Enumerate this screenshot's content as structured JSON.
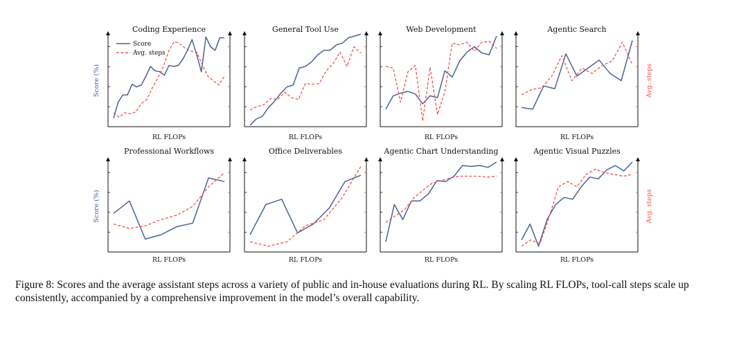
{
  "colors": {
    "score": "#4a6294",
    "steps": "#ef5350",
    "axis": "#111111",
    "tick": "#d44a4a"
  },
  "legend": {
    "score_label": "Score",
    "steps_label": "Avg. steps"
  },
  "axes": {
    "left_label": "Score (%)",
    "right_label": "Avg. steps",
    "x_label": "RL FLOPs"
  },
  "chart_data": [
    {
      "type": "line",
      "title": "Coding Experience",
      "xlabel": "RL FLOPs",
      "ylabel": "Score (%)",
      "legend": "top-left",
      "series": [
        {
          "name": "Score",
          "values": [
            0.08,
            0.26,
            0.34,
            0.34,
            0.46,
            0.43,
            0.45,
            0.55,
            0.66,
            0.61,
            0.6,
            0.56,
            0.67,
            0.66,
            0.67,
            0.74,
            0.84,
            0.96,
            0.79,
            0.6,
            0.99,
            0.88,
            0.84,
            0.98,
            0.98
          ]
        },
        {
          "name": "Avg. steps",
          "values": [
            0.14,
            0.09,
            0.14,
            0.13,
            0.15,
            0.24,
            0.29,
            0.42,
            0.53,
            0.66,
            0.84,
            0.94,
            0.91,
            0.86,
            0.83,
            0.82,
            0.68,
            0.55,
            0.5,
            0.45,
            0.55
          ]
        }
      ]
    },
    {
      "type": "line",
      "title": "General Tool Use",
      "xlabel": "RL FLOPs",
      "series": [
        {
          "name": "Score",
          "values": [
            0.0,
            0.07,
            0.1,
            0.2,
            0.27,
            0.36,
            0.43,
            0.45,
            0.64,
            0.66,
            0.71,
            0.79,
            0.84,
            0.84,
            0.9,
            0.92,
            0.98,
            1.0,
            1.02
          ]
        },
        {
          "name": "Avg. steps",
          "values": [
            0.17,
            0.21,
            0.23,
            0.3,
            0.29,
            0.37,
            0.31,
            0.29,
            0.47,
            0.46,
            0.47,
            0.61,
            0.69,
            0.82,
            0.66,
            0.88,
            0.81
          ]
        }
      ]
    },
    {
      "type": "line",
      "title": "Web Development",
      "xlabel": "RL FLOPs",
      "series": [
        {
          "name": "Score",
          "values": [
            0.18,
            0.33,
            0.36,
            0.38,
            0.35,
            0.24,
            0.33,
            0.31,
            0.61,
            0.54,
            0.72,
            0.82,
            0.88,
            0.81,
            0.79,
            1.0
          ]
        },
        {
          "name": "Avg. steps",
          "values": [
            0.66,
            0.64,
            0.26,
            0.6,
            0.67,
            0.05,
            0.65,
            0.12,
            0.38,
            0.92,
            0.9,
            0.93,
            0.83,
            0.93,
            0.94,
            0.86
          ]
        }
      ]
    },
    {
      "type": "line",
      "title": "Agentic Search",
      "xlabel": "RL FLOPs",
      "ylabel_right": "Avg. steps",
      "series": [
        {
          "name": "Score",
          "values": [
            0.2,
            0.18,
            0.44,
            0.41,
            0.8,
            0.55,
            0.64,
            0.73,
            0.58,
            0.5,
            0.95
          ]
        },
        {
          "name": "Avg. steps",
          "values": [
            0.34,
            0.4,
            0.42,
            0.55,
            0.78,
            0.5,
            0.64,
            0.58,
            0.67,
            0.72,
            0.93,
            0.68
          ]
        }
      ]
    },
    {
      "type": "line",
      "title": "Professional Workflows",
      "xlabel": "RL FLOPs",
      "ylabel": "Score (%)",
      "series": [
        {
          "name": "Score",
          "values": [
            0.42,
            0.56,
            0.13,
            0.18,
            0.27,
            0.31,
            0.82,
            0.78
          ]
        },
        {
          "name": "Avg. steps",
          "values": [
            0.3,
            0.25,
            0.28,
            0.35,
            0.4,
            0.5,
            0.72,
            0.88
          ]
        }
      ]
    },
    {
      "type": "line",
      "title": "Office Deliverables",
      "xlabel": "RL FLOPs",
      "series": [
        {
          "name": "Score",
          "values": [
            0.18,
            0.52,
            0.58,
            0.2,
            0.3,
            0.48,
            0.78,
            0.85
          ]
        },
        {
          "name": "Avg. steps",
          "values": [
            0.1,
            0.05,
            0.1,
            0.28,
            0.35,
            0.6,
            0.95
          ]
        }
      ]
    },
    {
      "type": "line",
      "title": "Agentic Chart Understanding",
      "xlabel": "RL FLOPs",
      "series": [
        {
          "name": "Score",
          "values": [
            0.1,
            0.52,
            0.35,
            0.56,
            0.56,
            0.64,
            0.79,
            0.78,
            0.84,
            0.96,
            0.95,
            0.96,
            0.94,
            1.0
          ]
        },
        {
          "name": "Avg. steps",
          "values": [
            0.32,
            0.39,
            0.46,
            0.59,
            0.68,
            0.76,
            0.79,
            0.82,
            0.84,
            0.84,
            0.84,
            0.83,
            0.84
          ]
        }
      ]
    },
    {
      "type": "line",
      "title": "Agentic Visual Puzzles",
      "xlabel": "RL FLOPs",
      "ylabel_right": "Avg. steps",
      "series": [
        {
          "name": "Score",
          "values": [
            0.12,
            0.3,
            0.05,
            0.35,
            0.52,
            0.6,
            0.58,
            0.72,
            0.83,
            0.81,
            0.91,
            0.96,
            0.9,
            1.0
          ]
        },
        {
          "name": "Avg. steps",
          "values": [
            0.05,
            0.12,
            0.08,
            0.38,
            0.72,
            0.78,
            0.72,
            0.86,
            0.92,
            0.88,
            0.86,
            0.84,
            0.86
          ]
        }
      ]
    }
  ],
  "caption": {
    "text": "Figure 8: Scores and the average assistant steps across a variety of public and in-house evaluations during RL. By scaling RL FLOPs, tool-call steps scale up consistently, accompanied by a comprehensive improvement in the model’s overall capability."
  }
}
